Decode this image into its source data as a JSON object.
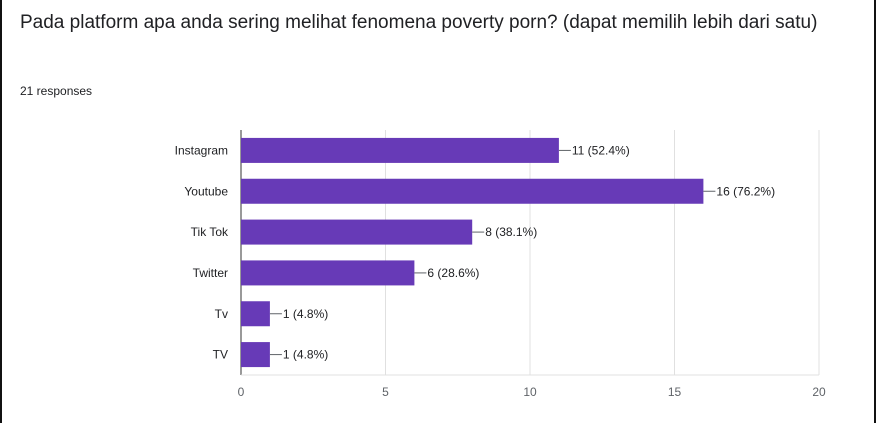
{
  "question": {
    "title": "Pada platform apa anda sering melihat fenomena poverty porn? (dapat memilih lebih dari satu)",
    "responses": "21 responses"
  },
  "chart_data": {
    "type": "bar",
    "orientation": "horizontal",
    "categories": [
      "Instagram",
      "Youtube",
      "Tik Tok",
      "Twitter",
      "Tv",
      "TV"
    ],
    "values": [
      11,
      16,
      8,
      6,
      1,
      1
    ],
    "value_labels": [
      "11 (52.4%)",
      "16 (76.2%)",
      "8 (38.1%)",
      "6 (28.6%)",
      "1 (4.8%)",
      "1 (4.8%)"
    ],
    "xlim": [
      0,
      20
    ],
    "xticks": [
      0,
      5,
      10,
      15,
      20
    ],
    "grid": "vertical",
    "bar_color": "#673ab7"
  }
}
